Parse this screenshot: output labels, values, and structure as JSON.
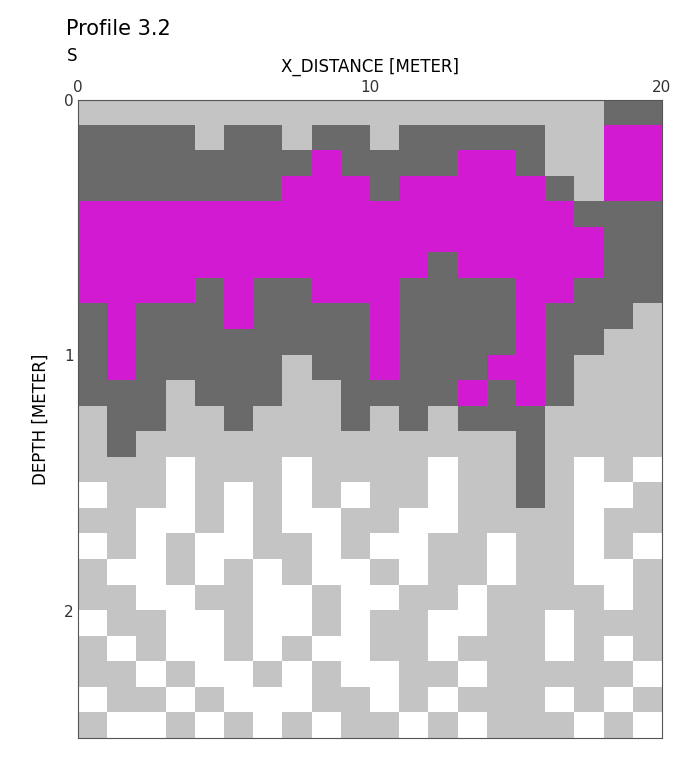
{
  "chart_data": {
    "type": "heatmap",
    "title": "Profile 3.2",
    "x_label": "X_DISTANCE [METER]",
    "y_label": "DEPTH [METER]",
    "annotations": [
      "S"
    ],
    "xlim": [
      0,
      20
    ],
    "ylim": [
      2.5,
      0
    ],
    "xticks": [
      0,
      10,
      20
    ],
    "yticks": [
      0,
      1,
      2
    ],
    "colors": [
      "#ffffff",
      "#c4c4c4",
      "#6a6a6a",
      "#d21ad2"
    ],
    "cells": [
      [
        1,
        1,
        1,
        1,
        1,
        1,
        1,
        1,
        1,
        1,
        1,
        1,
        1,
        1,
        1,
        1,
        1,
        1,
        2,
        2
      ],
      [
        2,
        2,
        2,
        2,
        1,
        2,
        2,
        1,
        2,
        2,
        1,
        2,
        2,
        2,
        2,
        2,
        1,
        1,
        3,
        3
      ],
      [
        2,
        2,
        2,
        2,
        2,
        2,
        2,
        2,
        3,
        2,
        2,
        2,
        2,
        3,
        3,
        2,
        1,
        1,
        3,
        3
      ],
      [
        2,
        2,
        2,
        2,
        2,
        2,
        2,
        3,
        3,
        3,
        2,
        3,
        3,
        3,
        3,
        3,
        2,
        1,
        3,
        3
      ],
      [
        3,
        3,
        3,
        3,
        3,
        3,
        3,
        3,
        3,
        3,
        3,
        3,
        3,
        3,
        3,
        3,
        3,
        2,
        2,
        2
      ],
      [
        3,
        3,
        3,
        3,
        3,
        3,
        3,
        3,
        3,
        3,
        3,
        3,
        3,
        3,
        3,
        3,
        3,
        3,
        2,
        2
      ],
      [
        3,
        3,
        3,
        3,
        3,
        3,
        3,
        3,
        3,
        3,
        3,
        3,
        2,
        3,
        3,
        3,
        3,
        3,
        2,
        2
      ],
      [
        3,
        3,
        3,
        3,
        2,
        3,
        2,
        2,
        3,
        3,
        3,
        2,
        2,
        2,
        2,
        3,
        3,
        2,
        2,
        2
      ],
      [
        2,
        3,
        2,
        2,
        2,
        3,
        2,
        2,
        2,
        2,
        3,
        2,
        2,
        2,
        2,
        3,
        2,
        2,
        2,
        1
      ],
      [
        2,
        3,
        2,
        2,
        2,
        2,
        2,
        2,
        2,
        2,
        3,
        2,
        2,
        2,
        2,
        3,
        2,
        2,
        1,
        1
      ],
      [
        2,
        3,
        2,
        2,
        2,
        2,
        2,
        1,
        2,
        2,
        3,
        2,
        2,
        2,
        3,
        3,
        2,
        1,
        1,
        1
      ],
      [
        2,
        2,
        2,
        1,
        2,
        2,
        2,
        1,
        1,
        2,
        2,
        2,
        2,
        3,
        2,
        3,
        2,
        1,
        1,
        1
      ],
      [
        1,
        2,
        2,
        1,
        1,
        2,
        1,
        1,
        1,
        2,
        1,
        2,
        1,
        2,
        2,
        2,
        1,
        1,
        1,
        1
      ],
      [
        1,
        2,
        1,
        1,
        1,
        1,
        1,
        1,
        1,
        1,
        1,
        1,
        1,
        1,
        1,
        2,
        1,
        1,
        1,
        1
      ],
      [
        1,
        1,
        1,
        0,
        1,
        1,
        1,
        0,
        1,
        1,
        1,
        1,
        0,
        1,
        1,
        2,
        1,
        0,
        1,
        0
      ],
      [
        0,
        1,
        1,
        0,
        1,
        0,
        1,
        0,
        1,
        0,
        1,
        1,
        0,
        1,
        1,
        2,
        1,
        0,
        0,
        1
      ],
      [
        1,
        1,
        0,
        0,
        1,
        0,
        1,
        0,
        0,
        1,
        1,
        0,
        0,
        1,
        1,
        1,
        1,
        0,
        1,
        1
      ],
      [
        0,
        1,
        0,
        1,
        0,
        0,
        1,
        1,
        0,
        1,
        0,
        0,
        1,
        1,
        0,
        1,
        1,
        0,
        1,
        0
      ],
      [
        1,
        0,
        0,
        1,
        0,
        1,
        0,
        1,
        0,
        0,
        1,
        0,
        1,
        1,
        0,
        1,
        1,
        0,
        0,
        1
      ],
      [
        1,
        1,
        0,
        0,
        1,
        1,
        0,
        0,
        1,
        0,
        0,
        1,
        1,
        0,
        1,
        1,
        1,
        1,
        0,
        1
      ],
      [
        0,
        1,
        1,
        0,
        0,
        1,
        0,
        0,
        1,
        0,
        1,
        1,
        0,
        0,
        1,
        1,
        0,
        1,
        1,
        1
      ],
      [
        1,
        0,
        1,
        0,
        0,
        1,
        0,
        1,
        0,
        0,
        1,
        1,
        0,
        1,
        1,
        1,
        0,
        1,
        0,
        1
      ],
      [
        1,
        1,
        0,
        1,
        0,
        0,
        1,
        0,
        1,
        0,
        0,
        1,
        1,
        0,
        1,
        1,
        1,
        1,
        1,
        0
      ],
      [
        0,
        1,
        1,
        0,
        1,
        0,
        0,
        0,
        1,
        1,
        0,
        1,
        0,
        1,
        1,
        1,
        0,
        1,
        0,
        1
      ],
      [
        1,
        0,
        0,
        1,
        0,
        1,
        0,
        1,
        0,
        1,
        1,
        0,
        1,
        0,
        1,
        1,
        1,
        0,
        1,
        0
      ]
    ]
  }
}
